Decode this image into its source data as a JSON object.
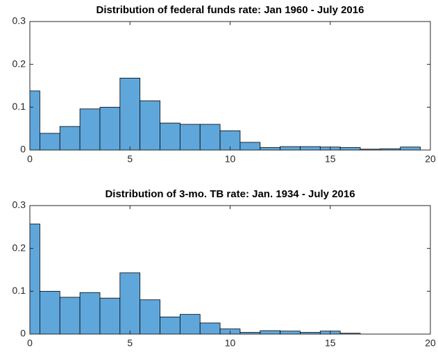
{
  "chart_data": [
    {
      "type": "histogram",
      "title": "Distribution of federal funds rate: Jan 1960 - July 2016",
      "bins": [
        0,
        0.5,
        1.5,
        2.5,
        3.5,
        4.5,
        5.5,
        6.5,
        7.5,
        8.5,
        9.5,
        10.5,
        11.5,
        12.5,
        13.5,
        14.5,
        15.5,
        16.5,
        17.5,
        18.5,
        19.5
      ],
      "values": [
        0.138,
        0.039,
        0.055,
        0.096,
        0.1,
        0.168,
        0.115,
        0.063,
        0.06,
        0.06,
        0.045,
        0.018,
        0.006,
        0.008,
        0.008,
        0.007,
        0.006,
        0.002,
        0.003,
        0.007
      ],
      "color": "#5fa7db",
      "xlim": [
        0,
        20
      ],
      "xticks": [
        0,
        5,
        10,
        15,
        20
      ],
      "ylim": [
        0,
        0.3
      ],
      "yticks": [
        0,
        0.1,
        0.2,
        0.3
      ]
    },
    {
      "type": "histogram",
      "title": "Distribution of 3-mo. TB rate: Jan. 1934 - July 2016",
      "bins": [
        0,
        0.5,
        1.5,
        2.5,
        3.5,
        4.5,
        5.5,
        6.5,
        7.5,
        8.5,
        9.5,
        10.5,
        11.5,
        12.5,
        13.5,
        14.5,
        15.5,
        16.5
      ],
      "values": [
        0.257,
        0.1,
        0.086,
        0.097,
        0.084,
        0.143,
        0.08,
        0.04,
        0.046,
        0.026,
        0.012,
        0.004,
        0.008,
        0.007,
        0.004,
        0.007,
        0.002
      ],
      "color": "#5fa7db",
      "xlim": [
        0,
        20
      ],
      "xticks": [
        0,
        5,
        10,
        15,
        20
      ],
      "ylim": [
        0,
        0.3
      ],
      "yticks": [
        0,
        0.1,
        0.2,
        0.3
      ]
    }
  ]
}
